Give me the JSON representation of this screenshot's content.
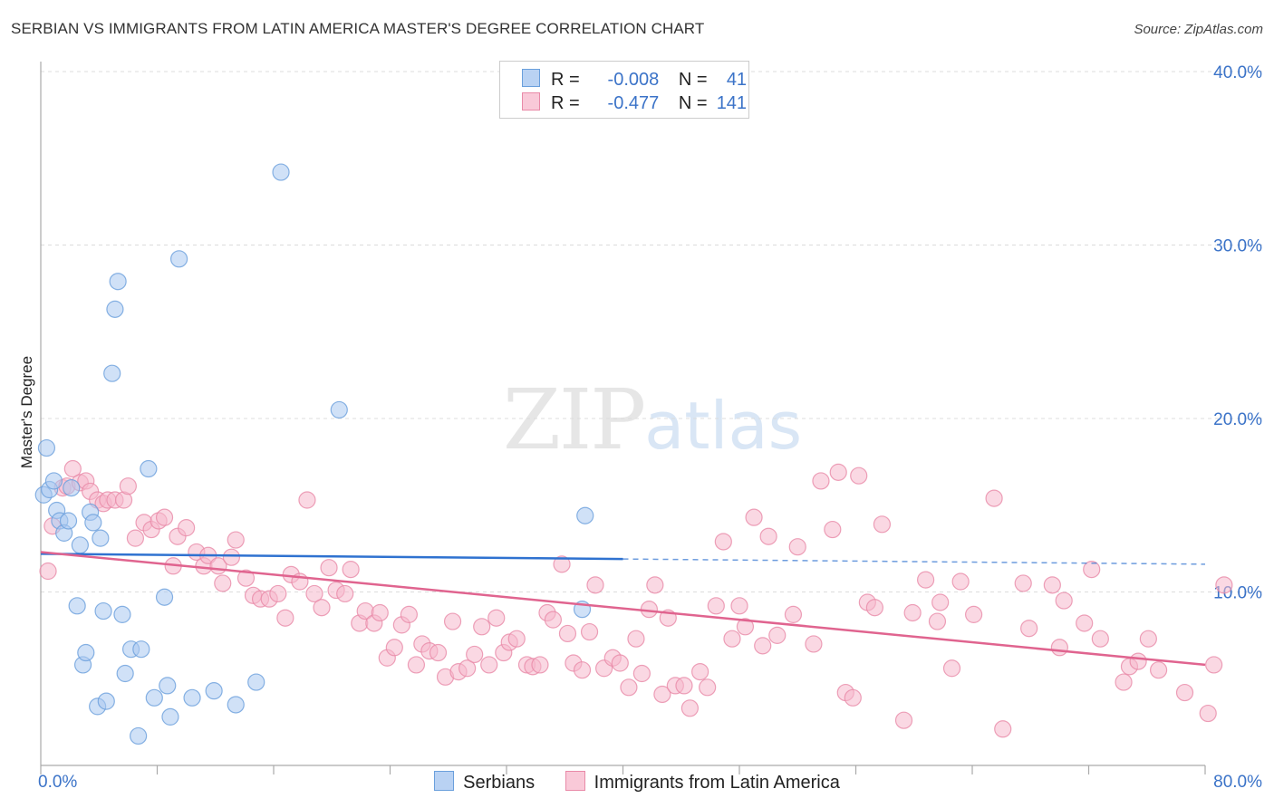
{
  "title": "SERBIAN VS IMMIGRANTS FROM LATIN AMERICA MASTER'S DEGREE CORRELATION CHART",
  "source": "Source: ZipAtlas.com",
  "watermark": {
    "zip": "ZIP",
    "atlas": "atlas"
  },
  "legend": {
    "rows": [
      {
        "r_label": "R =",
        "r_value": "-0.008",
        "n_label": "N =",
        "n_value": "41"
      },
      {
        "r_label": "R =",
        "r_value": "-0.477",
        "n_label": "N =",
        "n_value": "141"
      }
    ]
  },
  "colors": {
    "serbians_fill": "#a9c8f0",
    "serbians_stroke": "#6a9fdc",
    "serbians_line": "#2f72d0",
    "latin_fill": "#f6b8cc",
    "latin_stroke": "#e98aa8",
    "latin_line": "#e0648f",
    "tick": "#3b73c8"
  },
  "chart_data": {
    "type": "scatter",
    "title": "SERBIAN VS IMMIGRANTS FROM LATIN AMERICA MASTER'S DEGREE CORRELATION CHART",
    "xlabel": "",
    "ylabel": "Master's Degree",
    "xlim": [
      0,
      80
    ],
    "ylim": [
      0,
      40
    ],
    "x_tick_labels": [
      "0.0%",
      "80.0%"
    ],
    "y_ticks": [
      10,
      20,
      30,
      40
    ],
    "y_tick_labels": [
      "10.0%",
      "20.0%",
      "30.0%",
      "40.0%"
    ],
    "grid": true,
    "series": [
      {
        "name": "Serbians",
        "r": -0.008,
        "n": 41,
        "trend": {
          "x0": 0,
          "y0": 12.2,
          "x1": 40,
          "y1": 11.9,
          "dashed_to_x": 80,
          "dashed_y": 11.6
        },
        "points": [
          [
            0.2,
            15.6
          ],
          [
            0.4,
            18.3
          ],
          [
            0.6,
            15.9
          ],
          [
            0.9,
            16.4
          ],
          [
            1.1,
            14.7
          ],
          [
            1.3,
            14.1
          ],
          [
            1.6,
            13.4
          ],
          [
            1.9,
            14.1
          ],
          [
            2.1,
            16.0
          ],
          [
            2.5,
            9.2
          ],
          [
            2.7,
            12.7
          ],
          [
            2.9,
            5.8
          ],
          [
            3.1,
            6.5
          ],
          [
            3.4,
            14.6
          ],
          [
            3.6,
            14.0
          ],
          [
            3.9,
            3.4
          ],
          [
            4.1,
            13.1
          ],
          [
            4.3,
            8.9
          ],
          [
            4.5,
            3.7
          ],
          [
            4.9,
            22.6
          ],
          [
            5.1,
            26.3
          ],
          [
            5.3,
            27.9
          ],
          [
            5.6,
            8.7
          ],
          [
            5.8,
            5.3
          ],
          [
            6.2,
            6.7
          ],
          [
            6.7,
            1.7
          ],
          [
            6.9,
            6.7
          ],
          [
            7.4,
            17.1
          ],
          [
            7.8,
            3.9
          ],
          [
            8.5,
            9.7
          ],
          [
            8.7,
            4.6
          ],
          [
            8.9,
            2.8
          ],
          [
            9.5,
            29.2
          ],
          [
            10.4,
            3.9
          ],
          [
            11.9,
            4.3
          ],
          [
            13.4,
            3.5
          ],
          [
            14.8,
            4.8
          ],
          [
            16.5,
            34.2
          ],
          [
            20.5,
            20.5
          ],
          [
            37.2,
            9.0
          ],
          [
            37.4,
            14.4
          ]
        ]
      },
      {
        "name": "Immigrants from Latin America",
        "r": -0.477,
        "n": 141,
        "trend": {
          "x0": 0,
          "y0": 12.3,
          "x1": 80,
          "y1": 5.8
        },
        "points": [
          [
            0.5,
            11.2
          ],
          [
            0.8,
            13.8
          ],
          [
            1.5,
            16.0
          ],
          [
            1.8,
            16.1
          ],
          [
            2.2,
            17.1
          ],
          [
            2.7,
            16.3
          ],
          [
            3.1,
            16.4
          ],
          [
            3.4,
            15.8
          ],
          [
            3.9,
            15.3
          ],
          [
            4.3,
            15.1
          ],
          [
            4.6,
            15.3
          ],
          [
            5.1,
            15.3
          ],
          [
            5.7,
            15.3
          ],
          [
            6.0,
            16.1
          ],
          [
            6.5,
            13.1
          ],
          [
            7.1,
            14.0
          ],
          [
            7.6,
            13.6
          ],
          [
            8.1,
            14.1
          ],
          [
            8.5,
            14.3
          ],
          [
            9.1,
            11.5
          ],
          [
            9.4,
            13.2
          ],
          [
            10.0,
            13.7
          ],
          [
            10.7,
            12.3
          ],
          [
            11.2,
            11.5
          ],
          [
            11.5,
            12.1
          ],
          [
            12.2,
            11.5
          ],
          [
            12.5,
            10.5
          ],
          [
            13.1,
            12.0
          ],
          [
            13.4,
            13.0
          ],
          [
            14.1,
            10.8
          ],
          [
            14.6,
            9.8
          ],
          [
            15.1,
            9.6
          ],
          [
            15.7,
            9.6
          ],
          [
            16.3,
            9.9
          ],
          [
            16.8,
            8.5
          ],
          [
            17.2,
            11.0
          ],
          [
            17.8,
            10.6
          ],
          [
            18.3,
            15.3
          ],
          [
            18.8,
            9.9
          ],
          [
            19.3,
            9.1
          ],
          [
            19.8,
            11.4
          ],
          [
            20.3,
            10.1
          ],
          [
            20.9,
            9.9
          ],
          [
            21.3,
            11.3
          ],
          [
            21.9,
            8.2
          ],
          [
            22.3,
            8.9
          ],
          [
            22.9,
            8.2
          ],
          [
            23.3,
            8.8
          ],
          [
            23.8,
            6.2
          ],
          [
            24.3,
            6.8
          ],
          [
            24.8,
            8.1
          ],
          [
            25.3,
            8.7
          ],
          [
            25.8,
            5.8
          ],
          [
            26.2,
            7.0
          ],
          [
            26.7,
            6.6
          ],
          [
            27.3,
            6.5
          ],
          [
            27.8,
            5.1
          ],
          [
            28.3,
            8.3
          ],
          [
            28.7,
            5.4
          ],
          [
            29.3,
            5.6
          ],
          [
            29.8,
            6.4
          ],
          [
            30.3,
            8.0
          ],
          [
            30.8,
            5.8
          ],
          [
            31.3,
            8.5
          ],
          [
            31.8,
            6.5
          ],
          [
            32.2,
            7.1
          ],
          [
            32.7,
            7.3
          ],
          [
            33.4,
            5.8
          ],
          [
            33.8,
            5.7
          ],
          [
            34.3,
            5.8
          ],
          [
            34.8,
            8.8
          ],
          [
            35.2,
            8.4
          ],
          [
            35.8,
            11.6
          ],
          [
            36.2,
            7.6
          ],
          [
            36.6,
            5.9
          ],
          [
            37.2,
            5.5
          ],
          [
            37.7,
            7.7
          ],
          [
            38.1,
            10.4
          ],
          [
            38.7,
            5.6
          ],
          [
            39.3,
            6.2
          ],
          [
            39.8,
            5.9
          ],
          [
            40.4,
            4.5
          ],
          [
            40.9,
            7.3
          ],
          [
            41.3,
            5.3
          ],
          [
            41.8,
            9.0
          ],
          [
            42.2,
            10.4
          ],
          [
            42.7,
            4.1
          ],
          [
            43.1,
            8.5
          ],
          [
            43.6,
            4.6
          ],
          [
            44.2,
            4.6
          ],
          [
            44.6,
            3.3
          ],
          [
            45.3,
            5.4
          ],
          [
            45.8,
            4.5
          ],
          [
            46.4,
            9.2
          ],
          [
            46.9,
            12.9
          ],
          [
            47.5,
            7.3
          ],
          [
            48.0,
            9.2
          ],
          [
            48.4,
            8.0
          ],
          [
            49.0,
            14.3
          ],
          [
            49.6,
            6.9
          ],
          [
            50.0,
            13.2
          ],
          [
            50.6,
            7.5
          ],
          [
            51.7,
            8.7
          ],
          [
            52.0,
            12.6
          ],
          [
            53.1,
            7.0
          ],
          [
            53.6,
            16.4
          ],
          [
            54.4,
            13.6
          ],
          [
            54.8,
            16.9
          ],
          [
            55.3,
            4.2
          ],
          [
            55.8,
            3.9
          ],
          [
            56.2,
            16.7
          ],
          [
            56.8,
            9.4
          ],
          [
            57.3,
            9.1
          ],
          [
            57.8,
            13.9
          ],
          [
            59.3,
            2.6
          ],
          [
            59.9,
            8.8
          ],
          [
            60.8,
            10.7
          ],
          [
            61.6,
            8.3
          ],
          [
            61.8,
            9.4
          ],
          [
            62.6,
            5.6
          ],
          [
            63.2,
            10.6
          ],
          [
            64.1,
            8.7
          ],
          [
            65.5,
            15.4
          ],
          [
            66.1,
            2.1
          ],
          [
            67.5,
            10.5
          ],
          [
            67.9,
            7.9
          ],
          [
            69.5,
            10.4
          ],
          [
            70.0,
            6.8
          ],
          [
            70.3,
            9.5
          ],
          [
            71.7,
            8.2
          ],
          [
            72.2,
            11.3
          ],
          [
            72.8,
            7.3
          ],
          [
            74.4,
            4.8
          ],
          [
            74.8,
            5.7
          ],
          [
            75.4,
            6.0
          ],
          [
            76.1,
            7.3
          ],
          [
            76.8,
            5.5
          ],
          [
            78.6,
            4.2
          ],
          [
            80.2,
            3.0
          ],
          [
            80.6,
            5.8
          ],
          [
            81.3,
            10.4
          ]
        ]
      }
    ]
  },
  "bottom_legend": [
    {
      "label": "Serbians"
    },
    {
      "label": "Immigrants from Latin America"
    }
  ]
}
